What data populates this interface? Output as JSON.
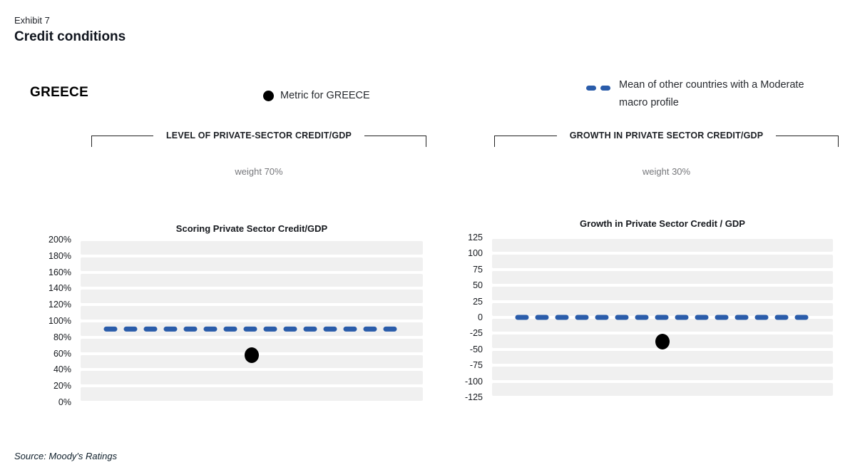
{
  "header": {
    "exhibit_label": "Exhibit 7",
    "title": "Credit conditions"
  },
  "country_label": "GREECE",
  "legend": {
    "metric_label": "Metric for GREECE",
    "mean_label": "Mean of other countries with a Moderate macro profile"
  },
  "sections": [
    {
      "bracket_title": "LEVEL OF PRIVATE-SECTOR CREDIT/GDP",
      "weight_label": "weight 70%"
    },
    {
      "bracket_title": "GROWTH IN PRIVATE SECTOR CREDIT/GDP",
      "weight_label": "weight 30%"
    }
  ],
  "colors": {
    "dash_blue": "#2a5caa",
    "dot_black": "#000000",
    "band_gray": "#f0f0f0"
  },
  "chart_data": [
    {
      "type": "scatter",
      "title": "Scoring Private Sector Credit/GDP",
      "xlabel": "",
      "ylabel": "",
      "ylim": [
        0,
        200
      ],
      "ytick_step": 20,
      "ytick_labels": [
        "200%",
        "180%",
        "160%",
        "140%",
        "120%",
        "100%",
        "80%",
        "60%",
        "40%",
        "20%",
        "0%"
      ],
      "grid": "horizontal-bands",
      "series": [
        {
          "name": "Metric for GREECE",
          "style": "dot",
          "value": 58
        },
        {
          "name": "Mean of other countries with a Moderate macro profile",
          "style": "dashed-line",
          "value": 90
        }
      ]
    },
    {
      "type": "scatter",
      "title": "Growth in Private Sector Credit / GDP",
      "xlabel": "",
      "ylabel": "",
      "ylim": [
        -125,
        125
      ],
      "ytick_step": 25,
      "ytick_labels": [
        "125",
        "100",
        "75",
        "50",
        "25",
        "0",
        "-25",
        "-50",
        "-75",
        "-100",
        "-125"
      ],
      "grid": "horizontal-bands",
      "series": [
        {
          "name": "Metric for GREECE",
          "style": "dot",
          "value": -38
        },
        {
          "name": "Mean of other countries with a Moderate macro profile",
          "style": "dashed-line",
          "value": 0
        }
      ]
    }
  ],
  "source": "Source: Moody's Ratings"
}
